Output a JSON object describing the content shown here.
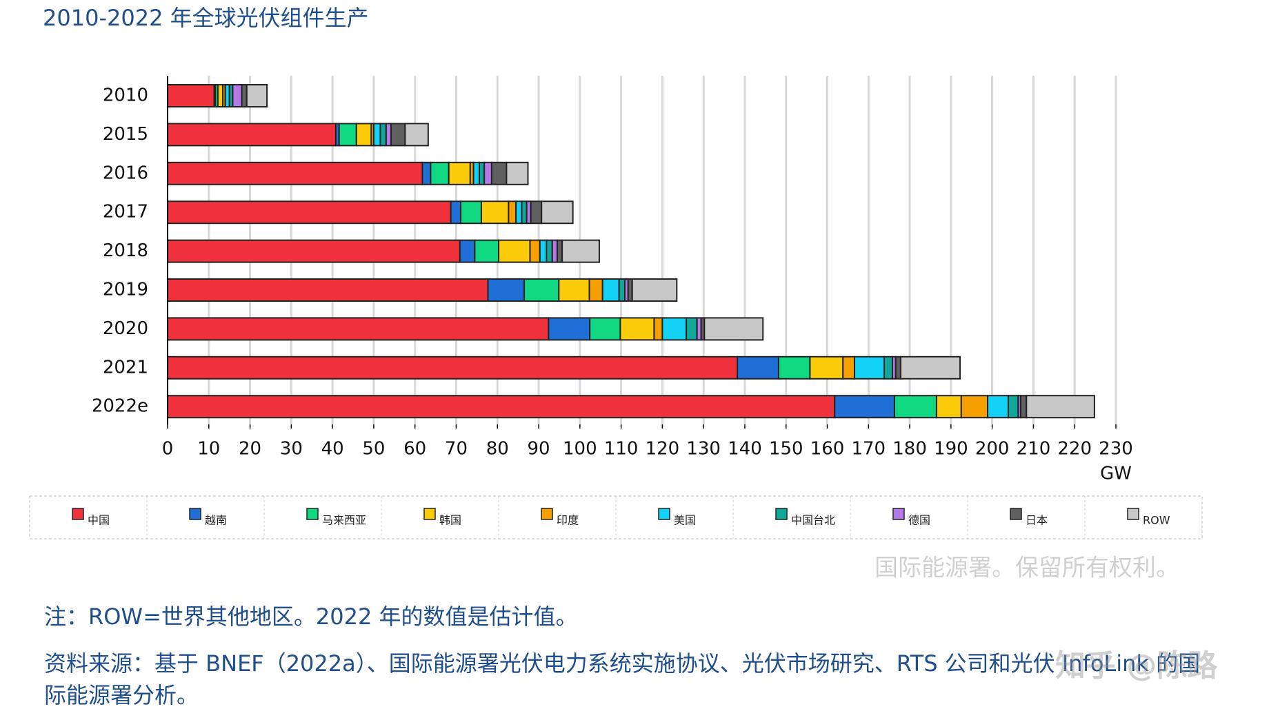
{
  "chart_data": {
    "type": "hbar-stacked",
    "title": "2010-2022 年全球光伏组件生产",
    "x_label": "GW",
    "categories": [
      "2010",
      "2015",
      "2016",
      "2017",
      "2018",
      "2019",
      "2020",
      "2021",
      "2022e"
    ],
    "series": [
      {
        "name": "中国",
        "color": "#f0323c",
        "values": [
          11.3,
          40.8,
          61.8,
          68.7,
          70.9,
          77.7,
          92.4,
          138.2,
          161.8
        ]
      },
      {
        "name": "越南",
        "color": "#1f6fd6",
        "values": [
          0.3,
          0.8,
          2,
          2.4,
          3.6,
          8.8,
          10,
          10,
          14.5
        ]
      },
      {
        "name": "马来西亚",
        "color": "#10d982",
        "values": [
          0.6,
          4.2,
          4.4,
          5,
          5.8,
          8.4,
          7.4,
          7.6,
          10.2
        ]
      },
      {
        "name": "韩国",
        "color": "#fccc0a",
        "values": [
          1.2,
          3.6,
          5.2,
          6.6,
          7.6,
          7.4,
          8.2,
          8,
          6
        ]
      },
      {
        "name": "印度",
        "color": "#f5a000",
        "values": [
          0.6,
          0.6,
          0.8,
          1.8,
          2.4,
          3.2,
          2,
          2.8,
          6.4
        ]
      },
      {
        "name": "美国",
        "color": "#13d2f5",
        "values": [
          1,
          1.6,
          1.4,
          1.4,
          1.6,
          4,
          5.8,
          7.2,
          5
        ]
      },
      {
        "name": "中国台北",
        "color": "#10a898",
        "values": [
          0.8,
          1.4,
          1.2,
          1.2,
          1.4,
          1.4,
          2.6,
          2,
          2.4
        ]
      },
      {
        "name": "德国",
        "color": "#b47be8",
        "values": [
          2.2,
          1.2,
          1.8,
          1,
          1.2,
          0.8,
          1,
          0.8,
          0.6
        ]
      },
      {
        "name": "日本",
        "color": "#606060",
        "values": [
          1.2,
          3.4,
          3.6,
          2.6,
          1.2,
          1,
          0.8,
          1.2,
          1.4
        ]
      },
      {
        "name": "ROW",
        "color": "#c8c8c8",
        "values": [
          4.9,
          5.6,
          5.2,
          7.6,
          9,
          10.8,
          14.2,
          14.4,
          16.5
        ]
      }
    ],
    "xlim": [
      0,
      230
    ],
    "xticks": [
      0,
      10,
      20,
      30,
      40,
      50,
      60,
      70,
      80,
      90,
      100,
      110,
      120,
      130,
      140,
      150,
      160,
      170,
      180,
      190,
      200,
      210,
      220,
      230
    ],
    "grid": true
  },
  "copyright": "国际能源署。保留所有权利。",
  "notes": [
    "注：ROW=世界其他地区。2022 年的数值是估计值。",
    "资料来源：基于 BNEF（2022a）、国际能源署光伏电力系统实施协议、光伏市场研究、RTS 公司和光伏 InfoLink 的国际能源署分析。"
  ],
  "watermark": "知乎 @陈路"
}
